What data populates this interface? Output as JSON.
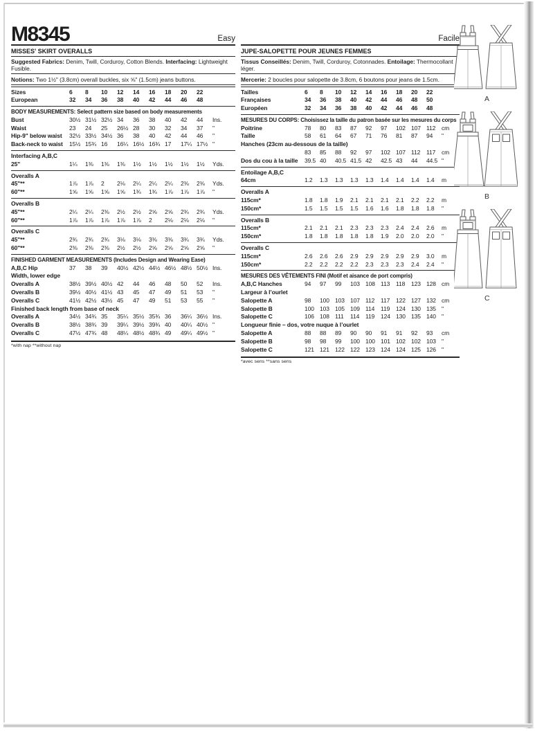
{
  "header": {
    "pattern_number": "M8345",
    "difficulty_en": "Easy",
    "difficulty_fr": "Facile"
  },
  "english": {
    "title": "MISSES' SKIRT OVERALLS",
    "fabrics_label": "Suggested Fabrics:",
    "fabrics_text": " Denim, Twill, Corduroy, Cotton Blends. ",
    "interfacing_label": "Interfacing:",
    "interfacing_text": " Lightweight Fusible.",
    "notions_label": "Notions:",
    "notions_text": " Two 1½\" (3.8cm) overall buckles, six ⅝\" (1.5cm) jeans buttons.",
    "footnote": "*with nap   **without nap",
    "rows": [
      {
        "t": "size",
        "label": "Sizes",
        "v": [
          "6",
          "8",
          "10",
          "12",
          "14",
          "16",
          "18",
          "20",
          "22"
        ],
        "u": "",
        "rule": true
      },
      {
        "t": "size",
        "label": "European",
        "v": [
          "32",
          "34",
          "36",
          "38",
          "40",
          "42",
          "44",
          "46",
          "48"
        ],
        "u": ""
      },
      {
        "t": "head",
        "text": "BODY MEASUREMENTS:",
        "rest": " Select pattern size based on body measurements",
        "rule": true
      },
      {
        "t": "d",
        "label": "Bust",
        "v": [
          "30½",
          "31½",
          "32½",
          "34",
          "36",
          "38",
          "40",
          "42",
          "44"
        ],
        "u": "Ins."
      },
      {
        "t": "d",
        "label": "Waist",
        "v": [
          "23",
          "24",
          "25",
          "26½",
          "28",
          "30",
          "32",
          "34",
          "37"
        ],
        "u": "\""
      },
      {
        "t": "d",
        "label": "Hip-9\" below waist",
        "v": [
          "32½",
          "33½",
          "34½",
          "36",
          "38",
          "40",
          "42",
          "44",
          "46"
        ],
        "u": "\""
      },
      {
        "t": "d",
        "label": "Back-neck to waist",
        "v": [
          "15½",
          "15¾",
          "16",
          "16¼",
          "16½",
          "16¾",
          "17",
          "17¼",
          "17½"
        ],
        "u": "\""
      },
      {
        "t": "sub",
        "text": "Interfacing A,B,C",
        "rule": true
      },
      {
        "t": "d",
        "label": "25\"",
        "v": [
          "1¼",
          "1⅜",
          "1⅜",
          "1⅜",
          "1½",
          "1½",
          "1½",
          "1½",
          "1½"
        ],
        "u": "Yds."
      },
      {
        "t": "sub",
        "text": "Overalls A",
        "rule": true
      },
      {
        "t": "d",
        "label": "45\"**",
        "v": [
          "1⅞",
          "1⅞",
          "2",
          "2⅛",
          "2¼",
          "2¼",
          "2¼",
          "2⅜",
          "2⅜"
        ],
        "u": "Yds."
      },
      {
        "t": "d",
        "label": "60\"**",
        "v": [
          "1⅝",
          "1⅝",
          "1⅝",
          "1⅝",
          "1¾",
          "1¾",
          "1⅞",
          "1⅞",
          "1⅞"
        ],
        "u": "\""
      },
      {
        "t": "sub",
        "text": "Overalls B",
        "rule": true
      },
      {
        "t": "d",
        "label": "45\"**",
        "v": [
          "2¼",
          "2¼",
          "2⅜",
          "2½",
          "2½",
          "2⅝",
          "2⅝",
          "2¾",
          "2¾"
        ],
        "u": "Yds."
      },
      {
        "t": "d",
        "label": "60\"**",
        "v": [
          "1⅞",
          "1⅞",
          "1⅞",
          "1⅞",
          "1⅞",
          "2",
          "2⅛",
          "2⅛",
          "2⅛"
        ],
        "u": "\""
      },
      {
        "t": "sub",
        "text": "Overalls C",
        "rule": true
      },
      {
        "t": "d",
        "label": "45\"**",
        "v": [
          "2¾",
          "2¾",
          "2¾",
          "3⅛",
          "3⅛",
          "3⅜",
          "3⅜",
          "3¾",
          "3¾"
        ],
        "u": "Yds."
      },
      {
        "t": "d",
        "label": "60\"**",
        "v": [
          "2⅜",
          "2⅜",
          "2⅜",
          "2½",
          "2½",
          "2⅝",
          "2⅝",
          "2⅝",
          "2⅝"
        ],
        "u": "\""
      },
      {
        "t": "head",
        "text": "FINISHED GARMENT MEASUREMENTS",
        "rest": " (Includes Design and Wearing Ease)",
        "rule": true
      },
      {
        "t": "d",
        "label": "A,B,C Hip",
        "v": [
          "37",
          "38",
          "39",
          "40½",
          "42½",
          "44½",
          "46½",
          "48½",
          "50½"
        ],
        "u": "Ins."
      },
      {
        "t": "sub",
        "text": "Width, lower edge"
      },
      {
        "t": "d",
        "label": "Overalls A",
        "v": [
          "38½",
          "39½",
          "40½",
          "42",
          "44",
          "46",
          "48",
          "50",
          "52"
        ],
        "u": "Ins."
      },
      {
        "t": "d",
        "label": "Overalls B",
        "v": [
          "39½",
          "40½",
          "41½",
          "43",
          "45",
          "47",
          "49",
          "51",
          "53"
        ],
        "u": "\""
      },
      {
        "t": "d",
        "label": "Overalls C",
        "v": [
          "41½",
          "42½",
          "43½",
          "45",
          "47",
          "49",
          "51",
          "53",
          "55"
        ],
        "u": "\""
      },
      {
        "t": "sub",
        "text": "Finished back length from base of neck"
      },
      {
        "t": "d",
        "label": "Overalls A",
        "v": [
          "34½",
          "34¾",
          "35",
          "35¼",
          "35½",
          "35¾",
          "36",
          "36¼",
          "36½"
        ],
        "u": "Ins."
      },
      {
        "t": "d",
        "label": "Overalls B",
        "v": [
          "38½",
          "38¾",
          "39",
          "39¼",
          "39½",
          "39¾",
          "40",
          "40¼",
          "40½"
        ],
        "u": "\""
      },
      {
        "t": "d",
        "label": "Overalls C",
        "v": [
          "47½",
          "47¾",
          "48",
          "48¼",
          "48½",
          "48¾",
          "49",
          "49¼",
          "49½"
        ],
        "u": "\""
      }
    ]
  },
  "french": {
    "title": "JUPE-SALOPETTE POUR JEUNES FEMMES",
    "fabrics_label": "Tissus Conseillés:",
    "fabrics_text": " Denim, Twill, Corduroy, Cotonnades. ",
    "interfacing_label": "Entoilage:",
    "interfacing_text": " Thermocollant léger.",
    "notions_label": "Mercerie:",
    "notions_text": " 2 boucles pour salopette de 3.8cm, 6 boutons pour jeans de 1.5cm.",
    "footnote": "*avec sens   **sans sens",
    "rows": [
      {
        "t": "size",
        "label": "Tailles",
        "v": [
          "6",
          "8",
          "10",
          "12",
          "14",
          "16",
          "18",
          "20",
          "22"
        ],
        "u": "",
        "rule": true
      },
      {
        "t": "size",
        "label": "Françaises",
        "v": [
          "34",
          "36",
          "38",
          "40",
          "42",
          "44",
          "46",
          "48",
          "50"
        ],
        "u": ""
      },
      {
        "t": "size",
        "label": "Européen",
        "v": [
          "32",
          "34",
          "36",
          "38",
          "40",
          "42",
          "44",
          "46",
          "48"
        ],
        "u": ""
      },
      {
        "t": "head",
        "text": "MESURES DU CORPS:",
        "rest": " Choisissez la taille du patron basée sur les mesures du corps",
        "rule": true
      },
      {
        "t": "d",
        "label": "Poitrine",
        "v": [
          "78",
          "80",
          "83",
          "87",
          "92",
          "97",
          "102",
          "107",
          "112"
        ],
        "u": "cm"
      },
      {
        "t": "d",
        "label": "Taille",
        "v": [
          "58",
          "61",
          "64",
          "67",
          "71",
          "76",
          "81",
          "87",
          "94"
        ],
        "u": "\""
      },
      {
        "t": "sub",
        "text": "Hanches (23cm au-dessous de la taille)"
      },
      {
        "t": "d",
        "label": "",
        "v": [
          "83",
          "85",
          "88",
          "92",
          "97",
          "102",
          "107",
          "112",
          "117"
        ],
        "u": "cm"
      },
      {
        "t": "d",
        "label": "Dos du cou à la taille",
        "v": [
          "39.5",
          "40",
          "40.5",
          "41.5",
          "42",
          "42.5",
          "43",
          "44",
          "44.5"
        ],
        "u": "\""
      },
      {
        "t": "sub",
        "text": "Entoilage A,B,C",
        "rule": true
      },
      {
        "t": "d",
        "label": "64cm",
        "v": [
          "1.2",
          "1.3",
          "1.3",
          "1.3",
          "1.3",
          "1.4",
          "1.4",
          "1.4",
          "1.4"
        ],
        "u": "m"
      },
      {
        "t": "sub",
        "text": "Overalls A",
        "rule": true
      },
      {
        "t": "d",
        "label": "115cm*",
        "v": [
          "1.8",
          "1.8",
          "1.9",
          "2.1",
          "2.1",
          "2.1",
          "2.1",
          "2.2",
          "2.2"
        ],
        "u": "m"
      },
      {
        "t": "d",
        "label": "150cm*",
        "v": [
          "1.5",
          "1.5",
          "1.5",
          "1.5",
          "1.6",
          "1.6",
          "1.8",
          "1.8",
          "1.8"
        ],
        "u": "\""
      },
      {
        "t": "sub",
        "text": "Overalls B",
        "rule": true
      },
      {
        "t": "d",
        "label": "115cm*",
        "v": [
          "2.1",
          "2.1",
          "2.1",
          "2.3",
          "2.3",
          "2.3",
          "2.4",
          "2.4",
          "2.6"
        ],
        "u": "m"
      },
      {
        "t": "d",
        "label": "150cm*",
        "v": [
          "1.8",
          "1.8",
          "1.8",
          "1.8",
          "1.8",
          "1.9",
          "2.0",
          "2.0",
          "2.0"
        ],
        "u": "\""
      },
      {
        "t": "sub",
        "text": "Overalls C",
        "rule": true
      },
      {
        "t": "d",
        "label": "115cm*",
        "v": [
          "2.6",
          "2.6",
          "2.6",
          "2.9",
          "2.9",
          "2.9",
          "2.9",
          "2.9",
          "3.0"
        ],
        "u": "m"
      },
      {
        "t": "d",
        "label": "150cm*",
        "v": [
          "2.2",
          "2.2",
          "2.2",
          "2.2",
          "2.3",
          "2.3",
          "2.3",
          "2.4",
          "2.4"
        ],
        "u": "\""
      },
      {
        "t": "head",
        "text": "MESURES DES VÊTEMENTS FINI",
        "rest": " (Motif et aisance de port compris)",
        "rule": true
      },
      {
        "t": "d",
        "label": "A,B,C Hanches",
        "v": [
          "94",
          "97",
          "99",
          "103",
          "108",
          "113",
          "118",
          "123",
          "128"
        ],
        "u": "cm"
      },
      {
        "t": "sub",
        "text": "Largeur à l’ourlet"
      },
      {
        "t": "d",
        "label": "Salopette A",
        "v": [
          "98",
          "100",
          "103",
          "107",
          "112",
          "117",
          "122",
          "127",
          "132"
        ],
        "u": "cm"
      },
      {
        "t": "d",
        "label": "Salopette B",
        "v": [
          "100",
          "103",
          "105",
          "109",
          "114",
          "119",
          "124",
          "130",
          "135"
        ],
        "u": "\""
      },
      {
        "t": "d",
        "label": "Salopette C",
        "v": [
          "106",
          "108",
          "111",
          "114",
          "119",
          "124",
          "130",
          "135",
          "140"
        ],
        "u": "\""
      },
      {
        "t": "sub",
        "text": "Longueur finie – dos, votre nuque à l’ourlet"
      },
      {
        "t": "d",
        "label": "Salopette A",
        "v": [
          "88",
          "88",
          "89",
          "90",
          "90",
          "91",
          "91",
          "92",
          "93"
        ],
        "u": "cm"
      },
      {
        "t": "d",
        "label": "Salopette B",
        "v": [
          "98",
          "98",
          "99",
          "100",
          "100",
          "101",
          "102",
          "102",
          "103"
        ],
        "u": "\""
      },
      {
        "t": "d",
        "label": "Salopette C",
        "v": [
          "121",
          "121",
          "122",
          "122",
          "123",
          "124",
          "124",
          "125",
          "126"
        ],
        "u": "\""
      }
    ]
  },
  "views": [
    {
      "label": "A"
    },
    {
      "label": "B"
    },
    {
      "label": "C"
    }
  ]
}
